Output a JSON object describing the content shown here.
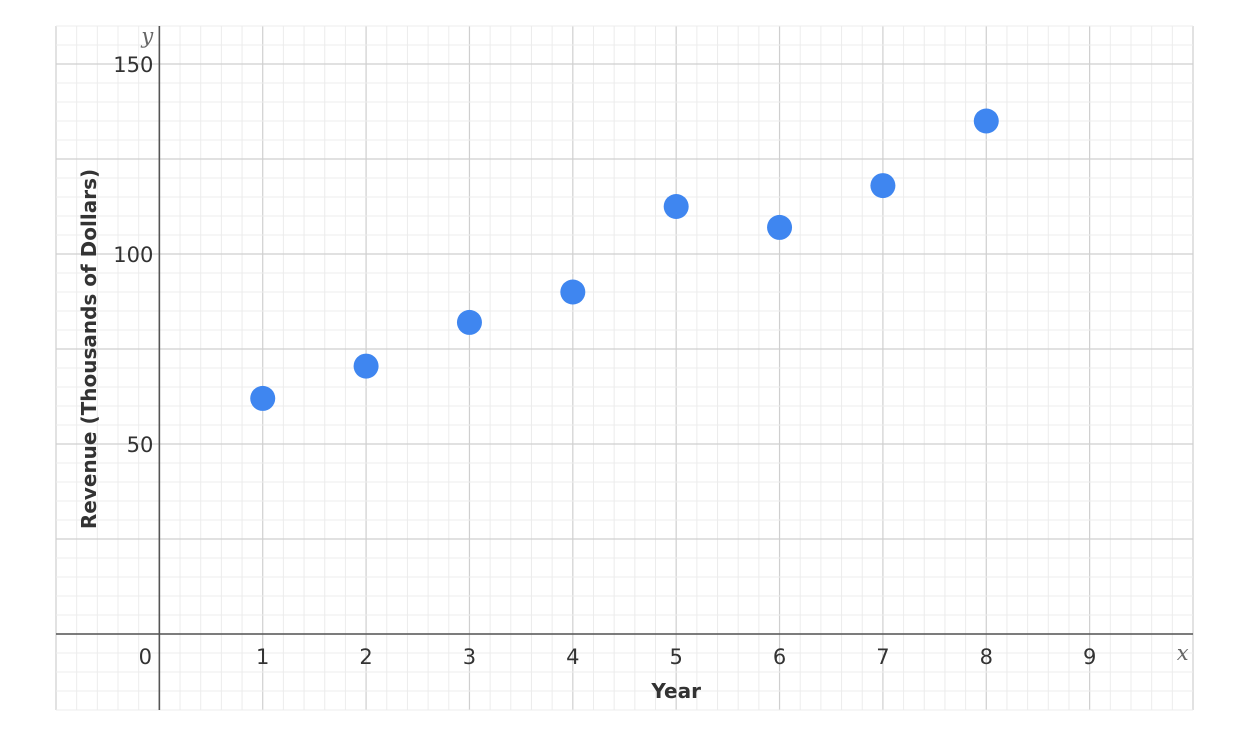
{
  "chart_data": {
    "type": "scatter",
    "xlabel": "Year",
    "ylabel": "Revenue (Thousands of Dollars)",
    "x_axis_letter": "x",
    "y_axis_letter": "y",
    "xlim": [
      -1,
      10
    ],
    "ylim": [
      -20,
      160
    ],
    "x_ticks": [
      0,
      1,
      2,
      3,
      4,
      5,
      6,
      7,
      8,
      9
    ],
    "y_ticks": [
      50,
      100,
      150
    ],
    "grid": true,
    "point_color": "#3f86f0",
    "series": [
      {
        "x": [
          1,
          2,
          3,
          4,
          5,
          6,
          7,
          8
        ],
        "y": [
          62,
          70.5,
          82,
          90,
          112.5,
          107,
          118,
          135
        ]
      }
    ]
  }
}
